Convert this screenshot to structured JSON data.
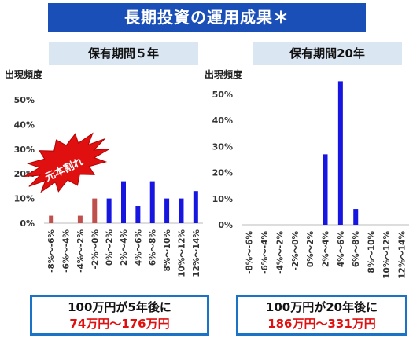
{
  "title": "長期投資の運用成果＊",
  "burst_label": "元本割れ",
  "colors": {
    "loss": "#c0504d",
    "gain": "#1616e0",
    "banner": "#1b4fb8",
    "burst": "#e01010",
    "result_border": "#1b73c8"
  },
  "chart_data": [
    {
      "type": "bar",
      "title": "保有期間５年",
      "ylabel": "出現頻度",
      "ylim": [
        0,
        50
      ],
      "yticks": [
        "0%",
        "10%",
        "20%",
        "30%",
        "40%",
        "50%"
      ],
      "categories": [
        "-8%～-6%",
        "-6%～-4%",
        "-4%～-2%",
        "-2%～0%",
        "0%～2%",
        "2%～4%",
        "4%～6%",
        "6%～8%",
        "8%～10%",
        "10%～12%",
        "12%～14%"
      ],
      "values": [
        3,
        0,
        3,
        10,
        10,
        17,
        7,
        17,
        10,
        10,
        13
      ],
      "loss_count": 4
    },
    {
      "type": "bar",
      "title": "保有期間20年",
      "ylabel": "出現頻度",
      "ylim": [
        0,
        55
      ],
      "yticks": [
        "0%",
        "10%",
        "20%",
        "30%",
        "40%",
        "50%"
      ],
      "categories": [
        "-8%～-6%",
        "-6%～-4%",
        "-4%～-2%",
        "-2%～0%",
        "0%～2%",
        "2%～4%",
        "4%～6%",
        "6%～8%",
        "8%～10%",
        "10%～12%",
        "12%～14%"
      ],
      "values": [
        0,
        0,
        0,
        0,
        0,
        27,
        55,
        6,
        0,
        0,
        0
      ],
      "loss_count": 4
    }
  ],
  "results": [
    {
      "line1": "100万円が5年後に",
      "line2": "74万円～176万円"
    },
    {
      "line1": "100万円が20年後に",
      "line2": "186万円～331万円"
    }
  ]
}
